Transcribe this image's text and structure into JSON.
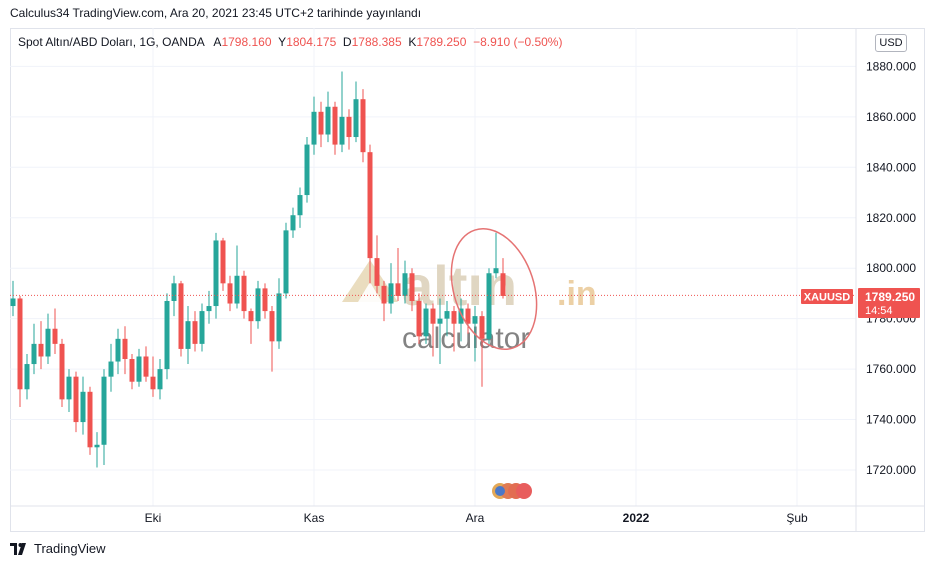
{
  "header": {
    "publish_line": "Calculus34 TradingView.com, Ara 20, 2021 23:45 UTC+2 tarihinde yayınlandı"
  },
  "legend": {
    "symbol": "Spot Altın/ABD Doları, 1G, OANDA",
    "open_label": "A",
    "open_value": "1798.160",
    "high_label": "Y",
    "high_value": "1804.175",
    "low_label": "D",
    "low_value": "1788.385",
    "close_label": "K",
    "close_value": "1789.250",
    "change_value": "−8.910 (−0.50%)"
  },
  "currency_button": "USD",
  "price_tag": {
    "symbol": "XAUUSD",
    "price": "1789.250",
    "countdown": "14:54"
  },
  "watermark": {
    "brand_main": "altın",
    "brand_tld": ".in",
    "brand_sub": "calculator"
  },
  "footer": {
    "logo_text": "TradingView"
  },
  "colors": {
    "up": "#26a69a",
    "down": "#ef5350",
    "grid": "#f0f3fa",
    "axis_text": "#131722",
    "price_line": "#ef5350",
    "annotation": "#e57373"
  },
  "chart_data": {
    "type": "candlestick",
    "y_axis": {
      "ticks": [
        1720,
        1740,
        1760,
        1780,
        1800,
        1820,
        1840,
        1860,
        1880
      ],
      "tick_labels": [
        "1720.000",
        "1740.000",
        "1760.000",
        "1780.000",
        "1800.000",
        "1820.000",
        "1840.000",
        "1860.000",
        "1880.000"
      ],
      "ylim": [
        1710,
        1893
      ]
    },
    "x_axis": {
      "tick_labels": [
        "Eki",
        "Kas",
        "Ara",
        "2022",
        "Şub"
      ],
      "tick_index": [
        20,
        43,
        66,
        89,
        112
      ],
      "bold_labels": [
        "2022"
      ]
    },
    "last_price": 1789.25,
    "grid": true,
    "candles": [
      [
        1785,
        1795,
        1781,
        1788
      ],
      [
        1788,
        1789,
        1745,
        1752
      ],
      [
        1752,
        1766,
        1748,
        1762
      ],
      [
        1762,
        1778,
        1758,
        1770
      ],
      [
        1770,
        1779,
        1760,
        1765
      ],
      [
        1765,
        1782,
        1762,
        1776
      ],
      [
        1776,
        1784,
        1766,
        1770
      ],
      [
        1770,
        1772,
        1745,
        1748
      ],
      [
        1748,
        1760,
        1743,
        1757
      ],
      [
        1757,
        1759,
        1735,
        1739
      ],
      [
        1739,
        1757,
        1734,
        1751
      ],
      [
        1751,
        1753,
        1726,
        1729
      ],
      [
        1729,
        1735,
        1721,
        1730
      ],
      [
        1730,
        1760,
        1722,
        1757
      ],
      [
        1757,
        1770,
        1751,
        1763
      ],
      [
        1763,
        1776,
        1758,
        1772
      ],
      [
        1772,
        1777,
        1758,
        1764
      ],
      [
        1764,
        1766,
        1752,
        1755
      ],
      [
        1755,
        1768,
        1753,
        1765
      ],
      [
        1765,
        1769,
        1755,
        1757
      ],
      [
        1757,
        1765,
        1749,
        1752
      ],
      [
        1752,
        1764,
        1748,
        1760
      ],
      [
        1760,
        1790,
        1756,
        1787
      ],
      [
        1787,
        1797,
        1781,
        1794
      ],
      [
        1794,
        1795,
        1765,
        1768
      ],
      [
        1768,
        1785,
        1762,
        1779
      ],
      [
        1779,
        1783,
        1767,
        1770
      ],
      [
        1770,
        1786,
        1767,
        1783
      ],
      [
        1783,
        1791,
        1778,
        1785
      ],
      [
        1785,
        1814,
        1780,
        1811
      ],
      [
        1811,
        1812,
        1791,
        1794
      ],
      [
        1794,
        1797,
        1783,
        1786
      ],
      [
        1786,
        1809,
        1784,
        1797
      ],
      [
        1797,
        1799,
        1780,
        1783
      ],
      [
        1783,
        1784,
        1770,
        1779
      ],
      [
        1779,
        1795,
        1776,
        1792
      ],
      [
        1792,
        1794,
        1780,
        1783
      ],
      [
        1783,
        1785,
        1759,
        1771
      ],
      [
        1771,
        1796,
        1768,
        1790
      ],
      [
        1790,
        1818,
        1788,
        1815
      ],
      [
        1815,
        1824,
        1812,
        1821
      ],
      [
        1821,
        1832,
        1816,
        1829
      ],
      [
        1829,
        1852,
        1826,
        1849
      ],
      [
        1849,
        1868,
        1845,
        1862
      ],
      [
        1862,
        1866,
        1848,
        1853
      ],
      [
        1853,
        1870,
        1850,
        1864
      ],
      [
        1864,
        1866,
        1845,
        1849
      ],
      [
        1849,
        1878,
        1846,
        1860
      ],
      [
        1860,
        1863,
        1847,
        1852
      ],
      [
        1852,
        1874,
        1850,
        1867
      ],
      [
        1867,
        1871,
        1842,
        1846
      ],
      [
        1846,
        1849,
        1794,
        1804
      ],
      [
        1804,
        1813,
        1790,
        1793
      ],
      [
        1793,
        1795,
        1779,
        1786
      ],
      [
        1786,
        1802,
        1782,
        1794
      ],
      [
        1794,
        1808,
        1787,
        1789
      ],
      [
        1789,
        1803,
        1786,
        1798
      ],
      [
        1798,
        1800,
        1783,
        1787
      ],
      [
        1787,
        1790,
        1770,
        1773
      ],
      [
        1773,
        1786,
        1770,
        1784
      ],
      [
        1784,
        1786,
        1765,
        1778
      ],
      [
        1778,
        1788,
        1762,
        1780
      ],
      [
        1780,
        1787,
        1773,
        1783
      ],
      [
        1783,
        1785,
        1767,
        1778
      ],
      [
        1778,
        1788,
        1771,
        1784
      ],
      [
        1784,
        1786,
        1774,
        1778
      ],
      [
        1778,
        1785,
        1763,
        1781
      ],
      [
        1781,
        1783,
        1753,
        1772
      ],
      [
        1772,
        1800,
        1770,
        1798
      ],
      [
        1798,
        1814,
        1796,
        1800
      ],
      [
        1798,
        1804,
        1788,
        1789
      ]
    ]
  }
}
